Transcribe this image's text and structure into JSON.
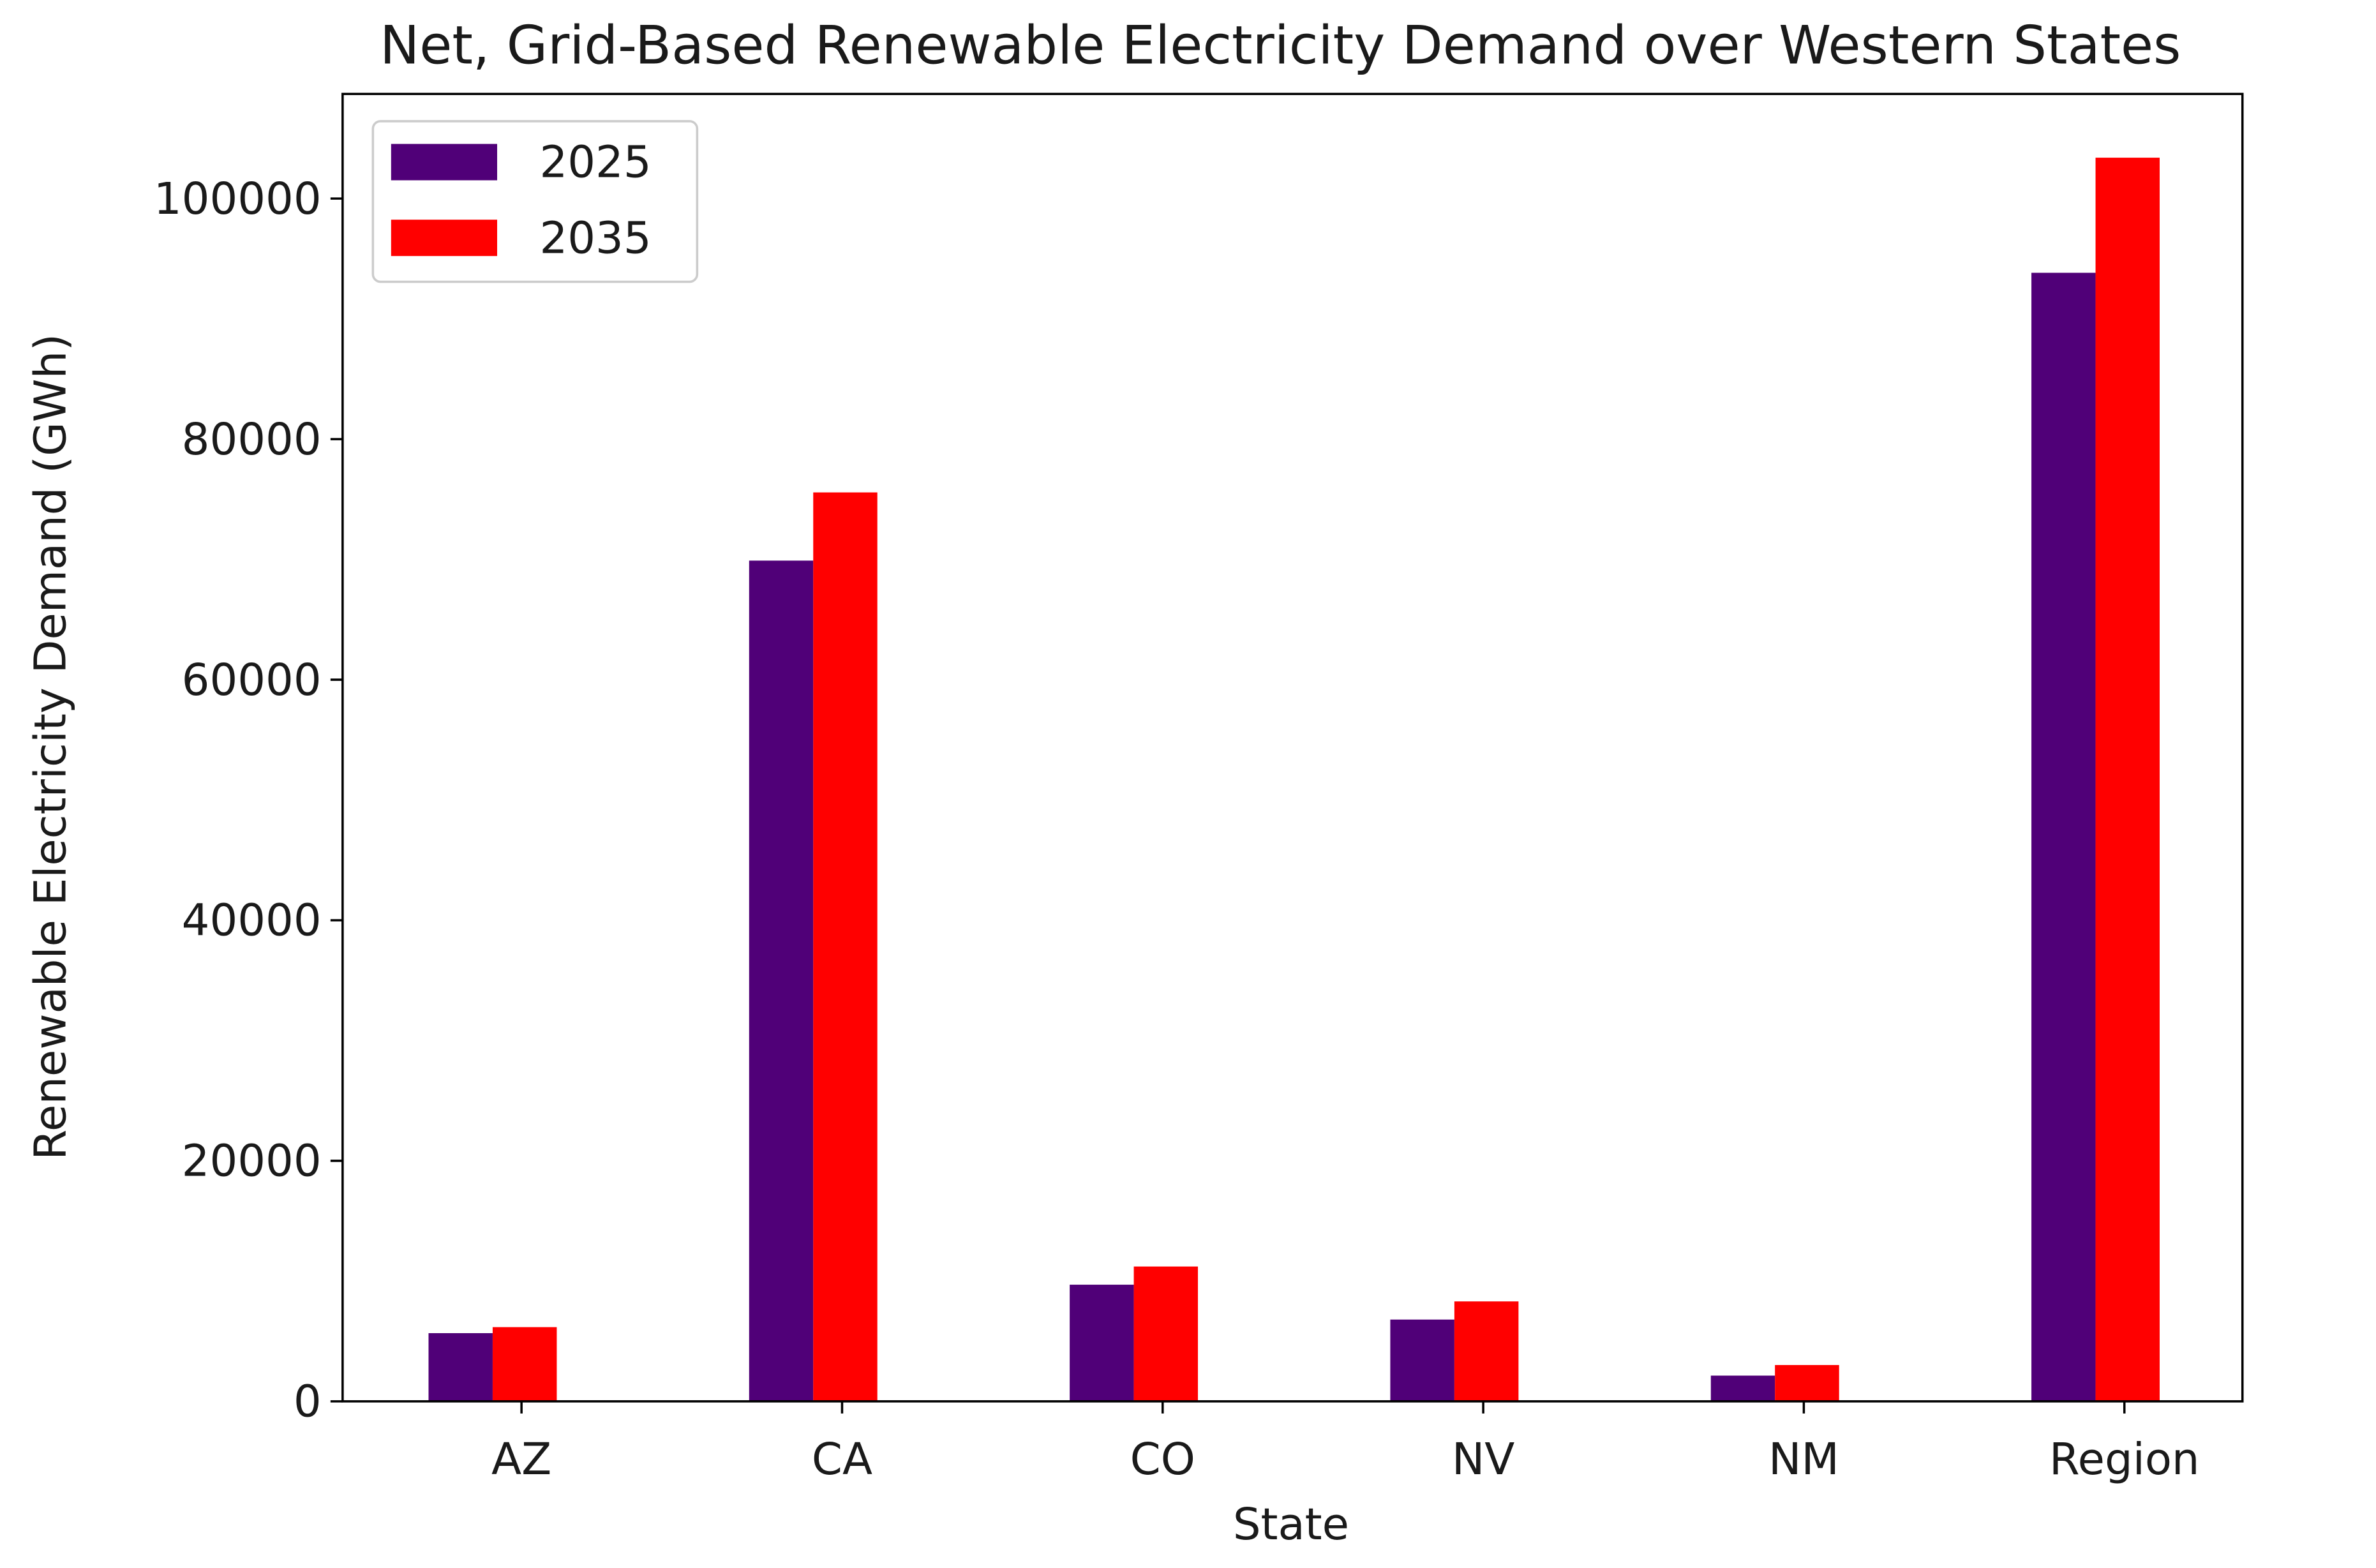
{
  "chart_data": {
    "type": "bar",
    "title": "Net, Grid-Based Renewable Electricity Demand over Western States",
    "x_label": "State",
    "y_label": "Renewable Electricity Demand (GWh)",
    "categories": [
      "AZ",
      "CA",
      "CO",
      "NV",
      "NM",
      "Region"
    ],
    "series": [
      {
        "name": "2025",
        "color": "#500078",
        "values": [
          5670,
          69900,
          9700,
          6800,
          2140,
          93830
        ]
      },
      {
        "name": "2035",
        "color": "#ff0000",
        "values": [
          6170,
          75570,
          11210,
          8310,
          3020,
          103400
        ]
      }
    ],
    "ylim": [
      0,
      108700
    ],
    "yticks": [
      0,
      20000,
      40000,
      60000,
      80000,
      100000
    ],
    "legend": "upper left"
  }
}
